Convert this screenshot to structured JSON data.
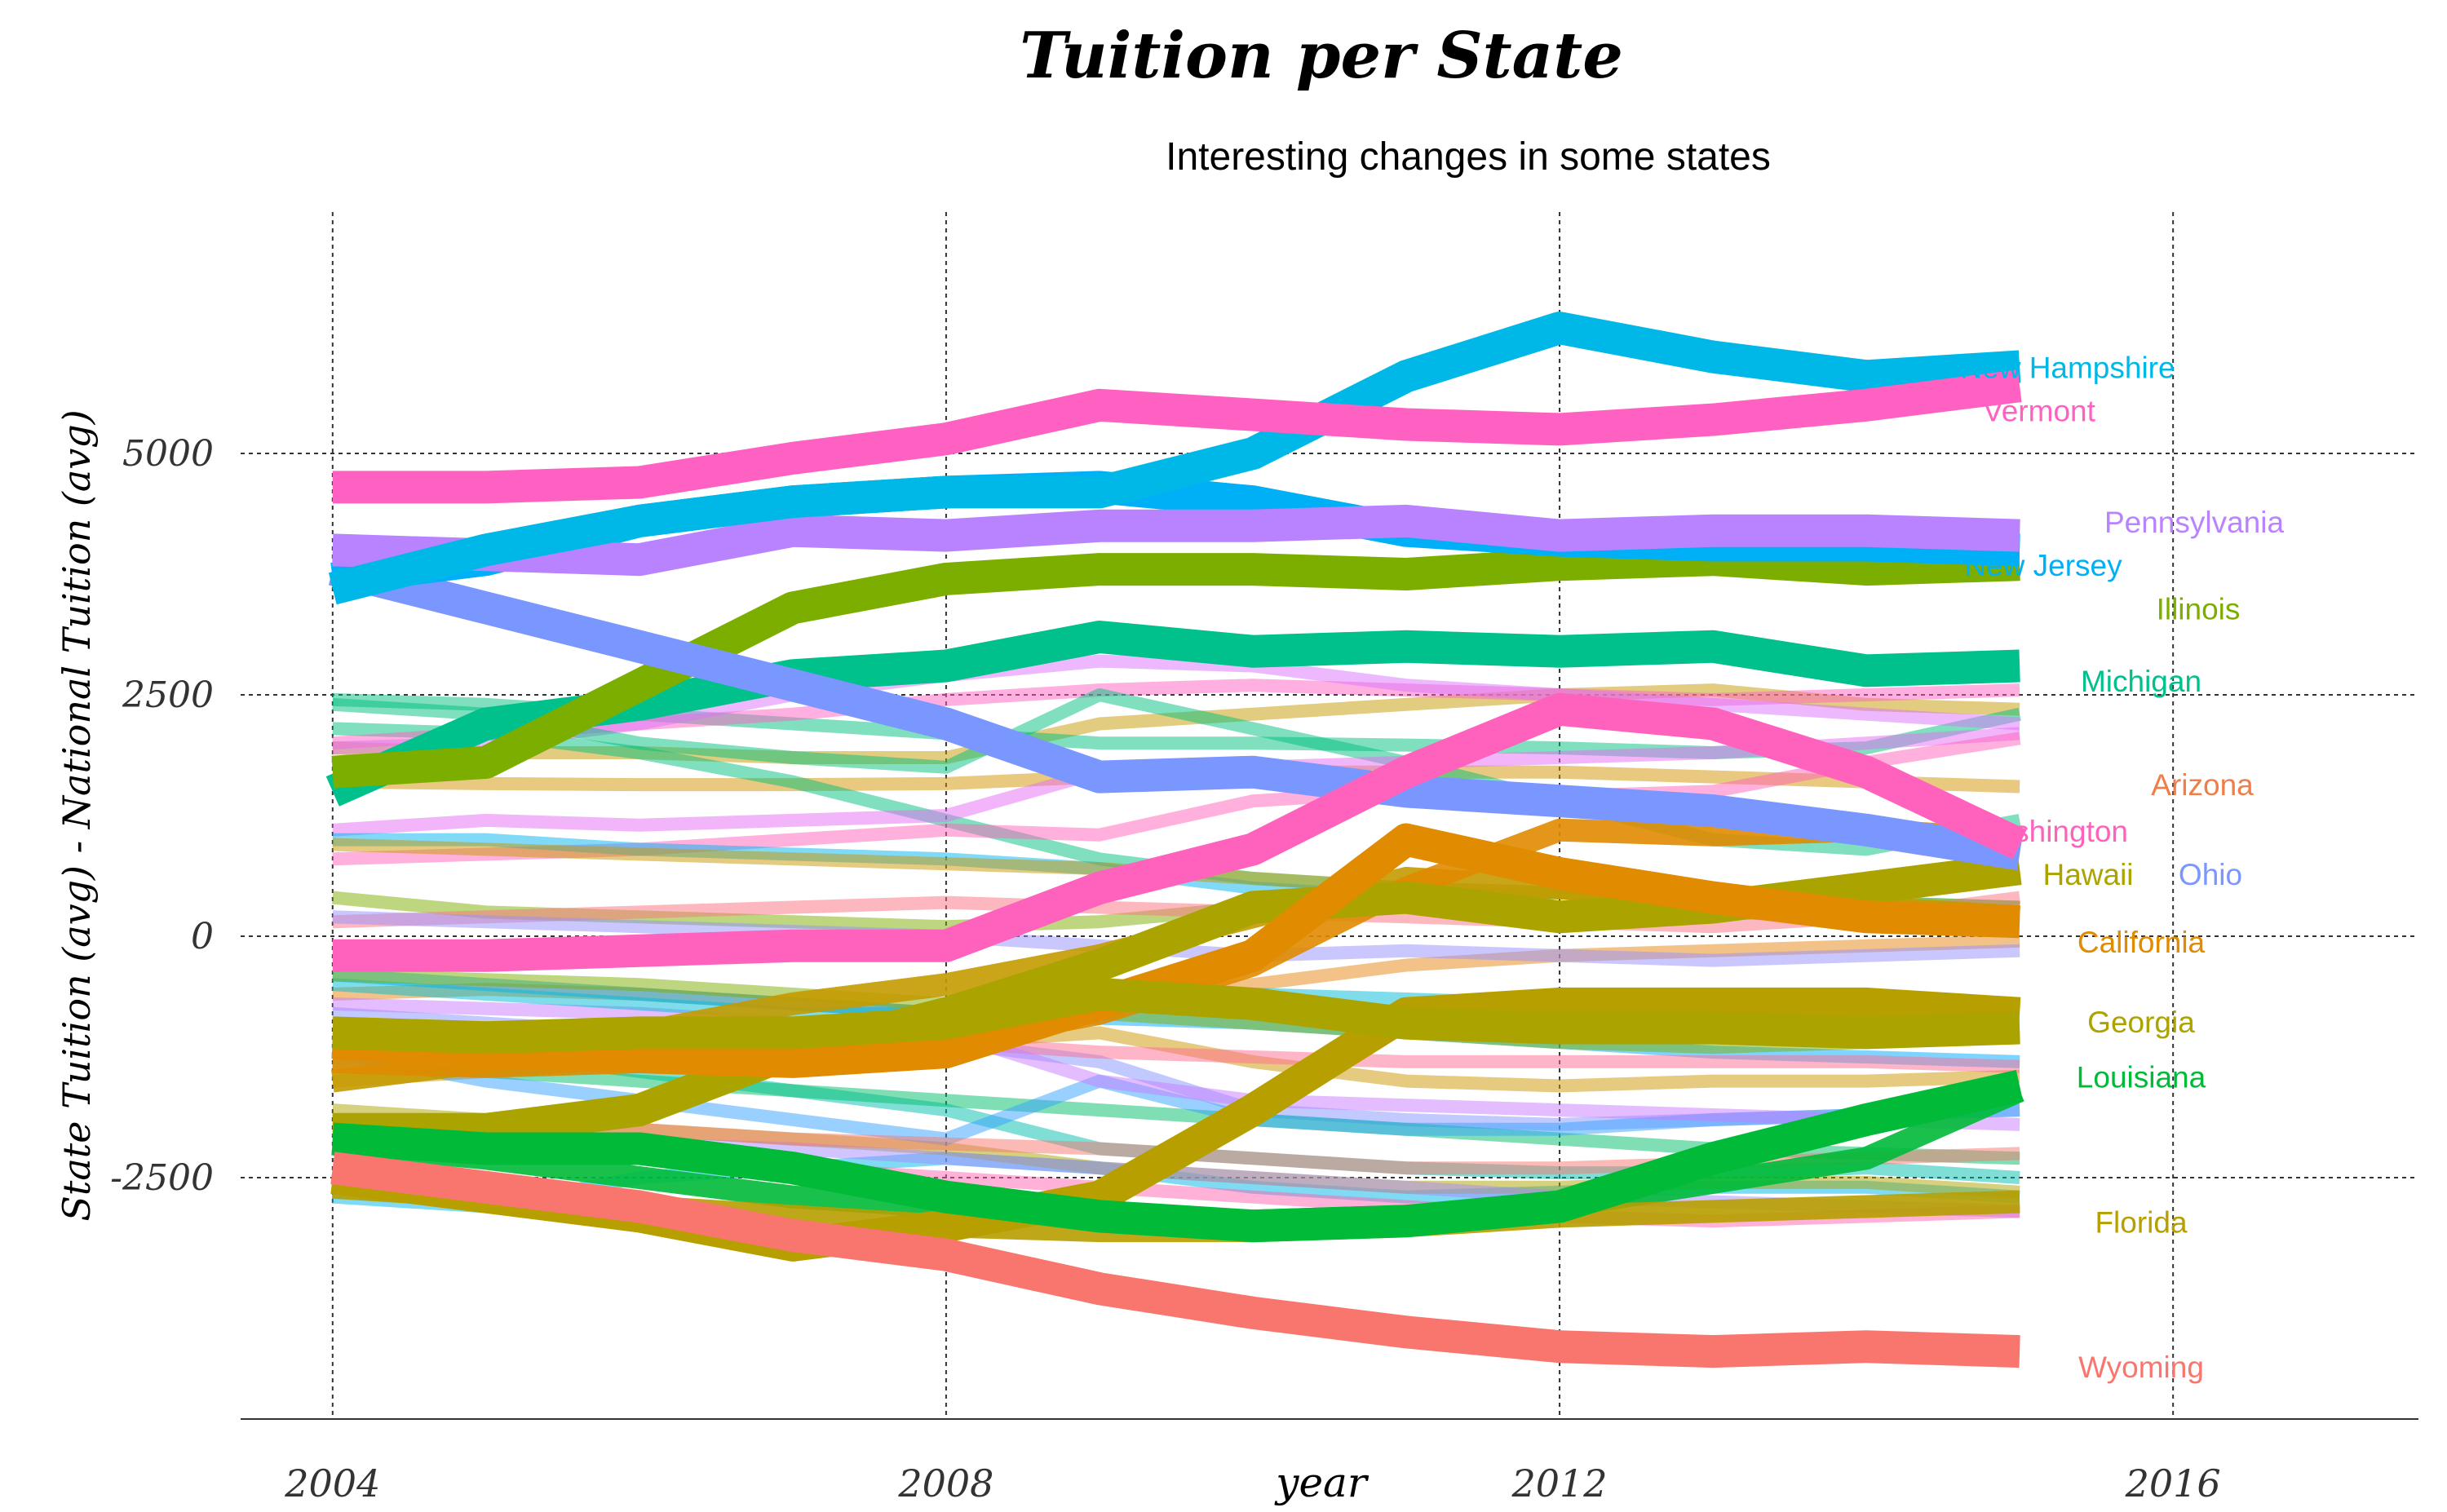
{
  "chart_data": {
    "type": "line",
    "title": "Tuition per State",
    "subtitle": "Interesting changes in some states",
    "xlabel": "year",
    "ylabel": "State Tuition (avg) - National Tuition (avg)",
    "x": [
      2004,
      2005,
      2006,
      2007,
      2008,
      2009,
      2010,
      2011,
      2012,
      2013,
      2014,
      2015
    ],
    "xlim": [
      2003.4,
      2017.6
    ],
    "ylim": [
      -5000,
      7500
    ],
    "x_ticks": [
      "2004",
      "2008",
      "2012",
      "2016"
    ],
    "y_ticks": [
      -2500,
      0,
      2500,
      5000
    ],
    "y_tick_labels": [
      "-2500",
      "0",
      "2500",
      "5000"
    ],
    "grid": "dotted major gridlines",
    "background_series": [
      {
        "color": "#C49A00",
        "values": [
          1950,
          1900,
          1900,
          1850,
          1850,
          2200,
          2300,
          2400,
          2500,
          2550,
          2400,
          2350
        ]
      },
      {
        "color": "#D39200",
        "values": [
          1600,
          1580,
          1570,
          1570,
          1580,
          1650,
          1700,
          1700,
          1700,
          1650,
          1600,
          1550
        ]
      },
      {
        "color": "#00BF7D",
        "values": [
          2450,
          2400,
          2300,
          2200,
          2100,
          2000,
          2000,
          1980,
          1950,
          1900,
          1950,
          2300
        ]
      },
      {
        "color": "#00BF7D",
        "values": [
          2150,
          2100,
          1900,
          1600,
          1200,
          800,
          600,
          500,
          450,
          400,
          350,
          300
        ]
      },
      {
        "color": "#FF61C3",
        "values": [
          2000,
          2100,
          2200,
          2300,
          2450,
          2550,
          2600,
          2550,
          2500,
          2450,
          2500,
          2550
        ]
      },
      {
        "color": "#DB72FB",
        "values": [
          1950,
          2000,
          2200,
          2500,
          2700,
          2850,
          2800,
          2600,
          2500,
          2400,
          2300,
          2200
        ]
      },
      {
        "color": "#00BF7D",
        "values": [
          2400,
          2300,
          2000,
          1850,
          1750,
          2500,
          2150,
          1800,
          1400,
          1000,
          900,
          1200
        ]
      },
      {
        "color": "#E76BF3",
        "values": [
          1100,
          1200,
          1150,
          1200,
          1250,
          1700,
          1750,
          1800,
          1850,
          1900,
          2000,
          2100
        ]
      },
      {
        "color": "#FF62BC",
        "values": [
          800,
          850,
          900,
          1000,
          1100,
          1050,
          1400,
          1500,
          1450,
          1500,
          1800,
          2050
        ]
      },
      {
        "color": "#00B4F0",
        "values": [
          1000,
          1000,
          900,
          850,
          800,
          700,
          500,
          400,
          300,
          250,
          200,
          150
        ]
      },
      {
        "color": "#C99800",
        "values": [
          950,
          900,
          850,
          800,
          750,
          700,
          600,
          500,
          450,
          400,
          500,
          600
        ]
      },
      {
        "color": "#7CAE00",
        "values": [
          400,
          250,
          200,
          150,
          100,
          150,
          300,
          400,
          450,
          400,
          350,
          300
        ]
      },
      {
        "color": "#FC717F",
        "values": [
          150,
          200,
          250,
          300,
          350,
          300,
          250,
          200,
          150,
          100,
          200,
          400
        ]
      },
      {
        "color": "#E68613",
        "values": [
          -600,
          -550,
          -600,
          -700,
          -800,
          -700,
          -500,
          -300,
          -200,
          -150,
          -100,
          -50
        ]
      },
      {
        "color": "#00A9FF",
        "values": [
          -400,
          -500,
          -600,
          -700,
          -800,
          -850,
          -900,
          -1000,
          -1100,
          -1200,
          -1250,
          -1300
        ]
      },
      {
        "color": "#8494FF",
        "values": [
          -800,
          -900,
          -1000,
          -1050,
          -1100,
          -1300,
          -1800,
          -1900,
          -1950,
          -1900,
          -1850,
          -1800
        ]
      },
      {
        "color": "#00C0AF",
        "values": [
          -1000,
          -1200,
          -1400,
          -1600,
          -1800,
          -2200,
          -2300,
          -2400,
          -2450,
          -2450,
          -2400,
          -2500
        ]
      },
      {
        "color": "#00B8E7",
        "values": [
          -2700,
          -2800,
          -2500,
          -2400,
          -2300,
          -2400,
          -2600,
          -2700,
          -2650,
          -2600,
          -2600,
          -2700
        ]
      },
      {
        "color": "#ABA300",
        "values": [
          -1800,
          -1900,
          -2000,
          -2100,
          -2200,
          -2400,
          -2500,
          -2600,
          -2600,
          -2550,
          -2550,
          -2650
        ]
      },
      {
        "color": "#CD9600",
        "values": [
          -1500,
          -1400,
          -1300,
          -1200,
          -1100,
          -1000,
          -1300,
          -1500,
          -1550,
          -1500,
          -1500,
          -1450
        ]
      },
      {
        "color": "#00BE67",
        "values": [
          -1300,
          -1400,
          -1500,
          -1600,
          -1700,
          -1800,
          -1900,
          -2000,
          -2100,
          -2200,
          -2250,
          -2300
        ]
      },
      {
        "color": "#35A2FF",
        "values": [
          -1200,
          -1500,
          -1700,
          -1900,
          -2100,
          -1500,
          -1900,
          -2000,
          -2000,
          -1900,
          -1850,
          -1800
        ]
      },
      {
        "color": "#FF6C91",
        "values": [
          -900,
          -950,
          -1000,
          -1100,
          -1100,
          -1200,
          -1250,
          -1300,
          -1300,
          -1300,
          -1300,
          -1350
        ]
      },
      {
        "color": "#C77CFF",
        "values": [
          -700,
          -750,
          -800,
          -900,
          -1000,
          -1500,
          -1700,
          -1750,
          -1800,
          -1850,
          -1900,
          -1950
        ]
      },
      {
        "color": "#A58AFF",
        "values": [
          -2000,
          -2100,
          -2150,
          -2200,
          -2300,
          -2400,
          -2500,
          -2600,
          -2700,
          -2750,
          -2800,
          -2850
        ]
      },
      {
        "color": "#F8766D",
        "values": [
          -1900,
          -1950,
          -2000,
          -2100,
          -2150,
          -2200,
          -2300,
          -2400,
          -2400,
          -2350,
          -2300,
          -2250
        ]
      },
      {
        "color": "#FF64B0",
        "values": [
          -2100,
          -2200,
          -2300,
          -2400,
          -2500,
          -2600,
          -2700,
          -2800,
          -2900,
          -2950,
          -2900,
          -2850
        ]
      },
      {
        "color": "#00BCD8",
        "values": [
          -500,
          -600,
          -700,
          -800,
          -800,
          -700,
          -600,
          -650,
          -700,
          -750,
          -700,
          -700
        ]
      },
      {
        "color": "#9590FF",
        "values": [
          200,
          150,
          100,
          50,
          0,
          -100,
          -200,
          -150,
          -200,
          -250,
          -200,
          -150
        ]
      },
      {
        "color": "#7CAE00",
        "values": [
          -400,
          -450,
          -500,
          -600,
          -700,
          -800,
          -900,
          -1000,
          -1100,
          -1150,
          -1100,
          -1050
        ]
      }
    ],
    "series": [
      {
        "name": "New Hampshire",
        "color": "#00B8E7",
        "values": [
          3600,
          4000,
          4300,
          4500,
          4600,
          4600,
          5000,
          5800,
          6300,
          6000,
          5800,
          5900
        ],
        "label_y": 5900
      },
      {
        "name": "Vermont",
        "color": "#FF61C3",
        "values": [
          4650,
          4650,
          4700,
          4950,
          5150,
          5500,
          5400,
          5300,
          5250,
          5350,
          5500,
          5700
        ],
        "label_y": 5450
      },
      {
        "name": "Pennsylvania",
        "color": "#B983FF",
        "values": [
          4000,
          3950,
          3900,
          4200,
          4150,
          4250,
          4250,
          4300,
          4150,
          4200,
          4200,
          4150
        ],
        "label_y": 4300
      },
      {
        "name": "New Jersey",
        "color": "#00B0F6",
        "values": [
          3700,
          3900,
          4300,
          4500,
          4600,
          4650,
          4500,
          4200,
          4100,
          4050,
          4050,
          4000
        ],
        "label_y": 3850
      },
      {
        "name": "Illinois",
        "color": "#7CAE00",
        "values": [
          1700,
          1800,
          2600,
          3400,
          3700,
          3800,
          3800,
          3750,
          3850,
          3900,
          3800,
          3850
        ],
        "label_y": 3400
      },
      {
        "name": "Michigan",
        "color": "#00C08B",
        "values": [
          1500,
          2200,
          2400,
          2700,
          2800,
          3100,
          2950,
          3000,
          2950,
          3000,
          2750,
          2800
        ],
        "label_y": 2650
      },
      {
        "name": "Arizona",
        "color": "#E76BF3",
        "values": [
          null,
          null,
          null,
          null,
          null,
          null,
          null,
          null,
          null,
          null,
          null,
          null
        ],
        "label_y": 1580,
        "label_color": "#EF7F4A"
      },
      {
        "name": "Washington",
        "color": "#FF62BC",
        "values": [
          -200,
          -200,
          -150,
          -100,
          -100,
          500,
          900,
          1700,
          2350,
          2200,
          1700,
          950
        ],
        "label_y": 1100
      },
      {
        "name": "Hawaii",
        "color": "#ABA300",
        "values": [
          -2000,
          -2000,
          -1800,
          -1200,
          -800,
          -300,
          300,
          400,
          200,
          300,
          500,
          700
        ],
        "label_y": 650
      },
      {
        "name": "Ohio",
        "color": "#7A96FF",
        "values": [
          3800,
          3400,
          3000,
          2600,
          2200,
          1650,
          1700,
          1500,
          1400,
          1300,
          1100,
          850
        ],
        "label_y": 650
      },
      {
        "name": "California",
        "color": "#E08B00",
        "values": [
          -1100,
          -1200,
          -1250,
          -1300,
          -1200,
          -700,
          -200,
          1000,
          650,
          400,
          200,
          150
        ],
        "label_y": -50
      },
      {
        "name": "Georgia",
        "color": "#ABA300",
        "values": [
          -1000,
          -1050,
          -1000,
          -1000,
          -900,
          -600,
          -700,
          -900,
          -950,
          -950,
          -1000,
          -950
        ],
        "label_y": -880
      },
      {
        "name": "Louisiana",
        "color": "#00BA38",
        "values": [
          -2100,
          -2200,
          -2200,
          -2400,
          -2700,
          -2900,
          -3000,
          -2950,
          -2800,
          -2300,
          -1900,
          -1550
        ],
        "label_y": -1450
      },
      {
        "name": "Florida",
        "color": "#B79F00",
        "values": [
          -2500,
          -2700,
          -2900,
          -3200,
          -3000,
          -2700,
          -1800,
          -800,
          -700,
          -700,
          -700,
          -800
        ],
        "label_y": -2950
      },
      {
        "name": "Wyoming",
        "color": "#F8766D",
        "values": [
          -2400,
          -2600,
          -2800,
          -3100,
          -3300,
          -3650,
          -3900,
          -4100,
          -4250,
          -4300,
          -4250,
          -4300
        ],
        "label_y": -4450
      }
    ],
    "extra_bold": [
      {
        "color": "#C49A00",
        "values": [
          -1500,
          -1300,
          -1000,
          -700,
          -500,
          -200,
          200,
          600,
          500,
          400,
          300,
          200
        ]
      },
      {
        "color": "#00BA38",
        "values": [
          -2150,
          -2300,
          -2500,
          -2700,
          -2800,
          -2900,
          -2950,
          -2900,
          -2800,
          -2550,
          -2300,
          -1600
        ]
      },
      {
        "color": "#B79F00",
        "values": [
          -2600,
          -2700,
          -2800,
          -2900,
          -3000,
          -3050,
          -3050,
          -3000,
          -2900,
          -2850,
          -2800,
          -2750
        ]
      },
      {
        "color": "#E08B00",
        "values": [
          -1300,
          -1350,
          -1300,
          -1200,
          -1100,
          -800,
          -300,
          500,
          1100,
          1050,
          1100,
          1000
        ]
      }
    ]
  }
}
